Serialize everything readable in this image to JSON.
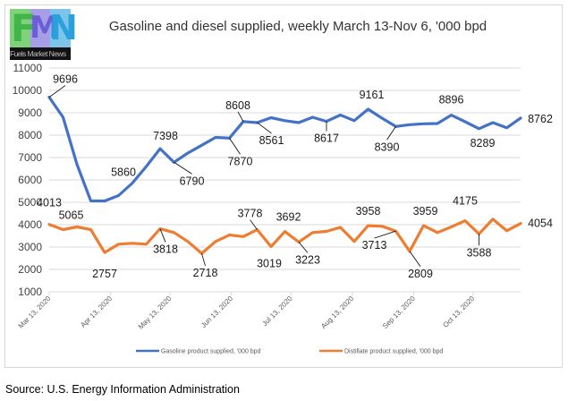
{
  "logo": {
    "letters": [
      "F",
      "M",
      "N"
    ],
    "caption": "Fuels Market News"
  },
  "source": "Source: U.S. Energy Information Administration",
  "chart_data": {
    "type": "line",
    "title": "Gasoline and diesel supplied, weekly March 13-Nov 6, '000 bpd",
    "xlabel": "",
    "ylabel": "",
    "ylim": [
      1000,
      11000
    ],
    "yticks": [
      1000,
      2000,
      3000,
      4000,
      5000,
      6000,
      7000,
      8000,
      9000,
      10000,
      11000
    ],
    "x_tick_labels": [
      "Mar 13, 2020",
      "Apr 13, 2020",
      "May 13, 2020",
      "Jun 13, 2020",
      "Jul 13, 2020",
      "Aug 13, 2020",
      "Sep 13, 2020",
      "Oct 13, 2020"
    ],
    "x_tick_week_index": [
      0,
      4.43,
      8.71,
      13.14,
      17.43,
      21.86,
      26.29,
      30.57
    ],
    "grid": true,
    "legend": "bottom",
    "x": [
      "Mar 13",
      "Mar 20",
      "Mar 27",
      "Apr 3",
      "Apr 10",
      "Apr 17",
      "Apr 24",
      "May 1",
      "May 8",
      "May 15",
      "May 22",
      "May 29",
      "Jun 5",
      "Jun 12",
      "Jun 19",
      "Jun 26",
      "Jul 3",
      "Jul 10",
      "Jul 17",
      "Jul 24",
      "Jul 31",
      "Aug 7",
      "Aug 14",
      "Aug 21",
      "Aug 28",
      "Sep 4",
      "Sep 11",
      "Sep 18",
      "Sep 25",
      "Oct 2",
      "Oct 9",
      "Oct 16",
      "Oct 23",
      "Oct 30",
      "Nov 6"
    ],
    "series": [
      {
        "name": "Gasoline product supplied, '000 bpd",
        "color": "#4472c4",
        "values": [
          9696,
          8800,
          6700,
          5065,
          5060,
          5300,
          5860,
          6600,
          7398,
          6790,
          7200,
          7550,
          7900,
          7870,
          8608,
          8561,
          8780,
          8650,
          8560,
          8800,
          8617,
          8900,
          8650,
          9161,
          8760,
          8390,
          8470,
          8510,
          8520,
          8896,
          8600,
          8289,
          8560,
          8330,
          8762
        ],
        "labels": [
          {
            "i": 0,
            "text": "9696",
            "dx": 18,
            "dy": -16,
            "leader": true
          },
          {
            "i": 3,
            "text": "5065",
            "dx": -22,
            "dy": 20,
            "leader": false
          },
          {
            "i": 6,
            "text": "5860",
            "dx": -10,
            "dy": -8,
            "leader": false
          },
          {
            "i": 8,
            "text": "7398",
            "dx": 6,
            "dy": -10,
            "leader": false
          },
          {
            "i": 9,
            "text": "6790",
            "dx": 20,
            "dy": 25,
            "leader": true
          },
          {
            "i": 13,
            "text": "7870",
            "dx": 12,
            "dy": 30,
            "leader": true
          },
          {
            "i": 14,
            "text": "8608",
            "dx": -6,
            "dy": -14,
            "leader": true
          },
          {
            "i": 15,
            "text": "8561",
            "dx": 16,
            "dy": 24,
            "leader": true
          },
          {
            "i": 20,
            "text": "8617",
            "dx": 0,
            "dy": 23,
            "leader": true
          },
          {
            "i": 23,
            "text": "9161",
            "dx": 4,
            "dy": -12,
            "leader": false
          },
          {
            "i": 25,
            "text": "8390",
            "dx": -10,
            "dy": 27,
            "leader": true
          },
          {
            "i": 29,
            "text": "8896",
            "dx": 0,
            "dy": -13,
            "leader": false
          },
          {
            "i": 31,
            "text": "8289",
            "dx": 4,
            "dy": 20,
            "leader": false
          },
          {
            "i": 34,
            "text": "8762",
            "dx": 22,
            "dy": 5,
            "leader": false
          }
        ]
      },
      {
        "name": "Distillate product supplied, '000 bpd",
        "color": "#ed7d31",
        "values": [
          4013,
          3780,
          3900,
          3780,
          2757,
          3130,
          3170,
          3130,
          3818,
          3650,
          3250,
          2718,
          3250,
          3540,
          3470,
          3778,
          3019,
          3692,
          3223,
          3650,
          3700,
          3880,
          3250,
          3958,
          3930,
          3713,
          2809,
          3959,
          3650,
          3900,
          4175,
          3588,
          4250,
          3730,
          4054
        ],
        "labels": [
          {
            "i": 0,
            "text": "4013",
            "dx": 0,
            "dy": -20,
            "leader": false
          },
          {
            "i": 4,
            "text": "2757",
            "dx": 0,
            "dy": 28,
            "leader": false
          },
          {
            "i": 8,
            "text": "3818",
            "dx": 6,
            "dy": 27,
            "leader": true
          },
          {
            "i": 11,
            "text": "2718",
            "dx": 4,
            "dy": 26,
            "leader": true
          },
          {
            "i": 15,
            "text": "3778",
            "dx": -8,
            "dy": -14,
            "leader": true
          },
          {
            "i": 16,
            "text": "3019",
            "dx": -2,
            "dy": 23,
            "leader": false
          },
          {
            "i": 17,
            "text": "3692",
            "dx": 4,
            "dy": -12,
            "leader": false
          },
          {
            "i": 18,
            "text": "3223",
            "dx": 10,
            "dy": 24,
            "leader": true
          },
          {
            "i": 23,
            "text": "3958",
            "dx": 0,
            "dy": -12,
            "leader": false
          },
          {
            "i": 25,
            "text": "3713",
            "dx": -24,
            "dy": 20,
            "leader": true
          },
          {
            "i": 26,
            "text": "2809",
            "dx": 12,
            "dy": 29,
            "leader": true
          },
          {
            "i": 27,
            "text": "3959",
            "dx": 2,
            "dy": -12,
            "leader": false
          },
          {
            "i": 30,
            "text": "4175",
            "dx": 0,
            "dy": -18,
            "leader": false
          },
          {
            "i": 31,
            "text": "3588",
            "dx": 0,
            "dy": 25,
            "leader": true
          },
          {
            "i": 34,
            "text": "4054",
            "dx": 22,
            "dy": 4,
            "leader": false
          }
        ]
      }
    ]
  }
}
